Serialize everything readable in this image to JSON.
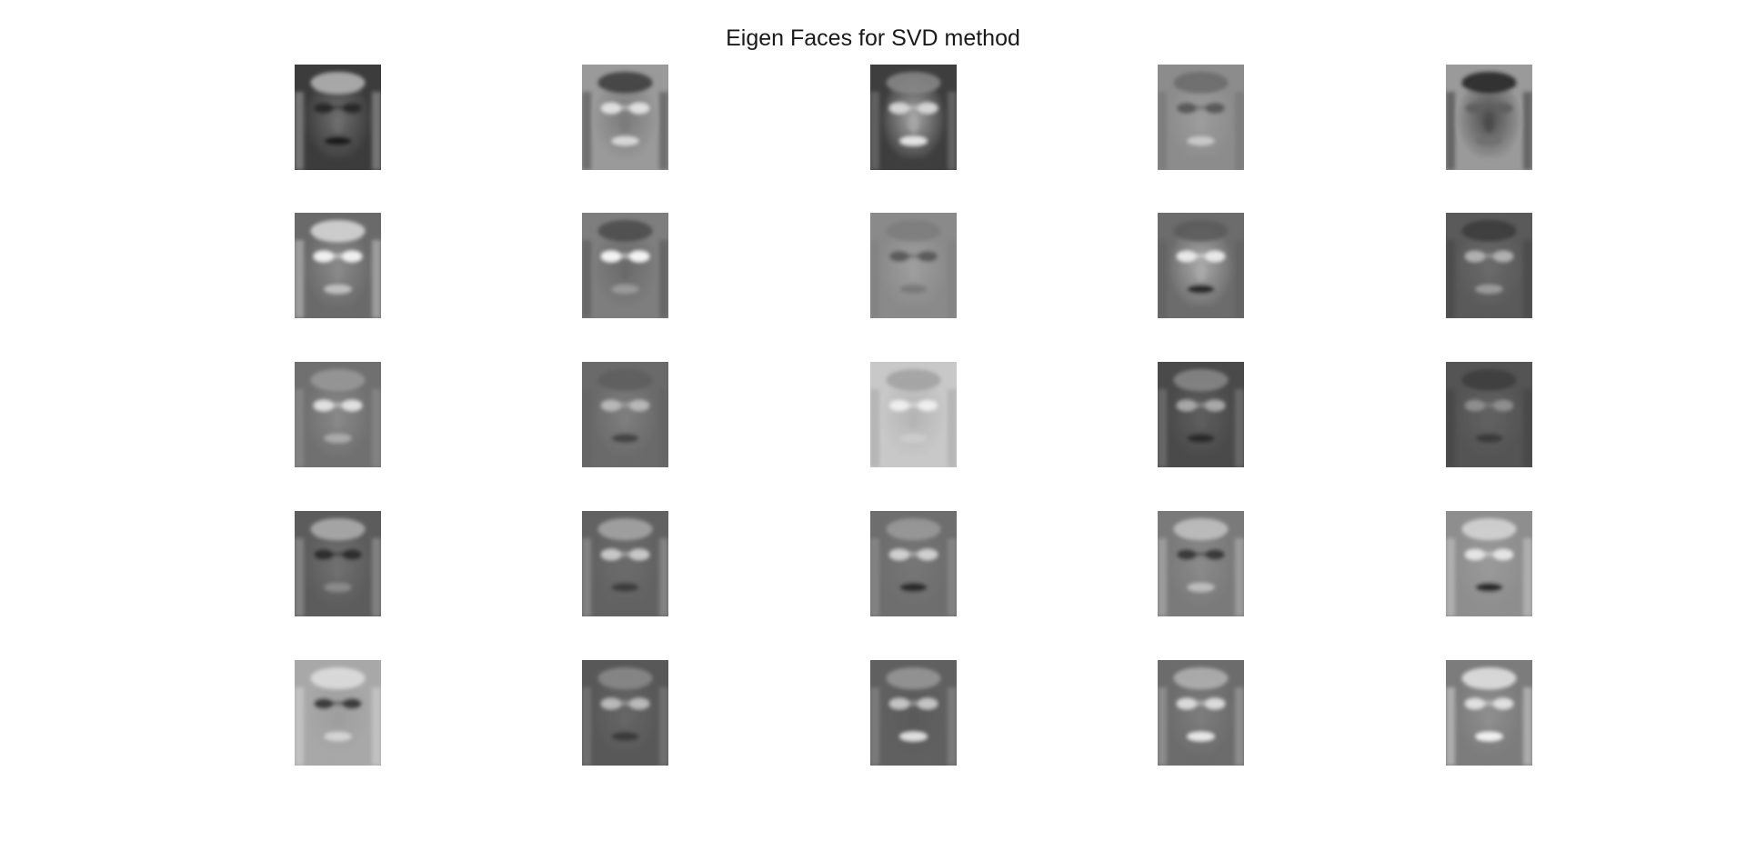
{
  "figure": {
    "title": "Eigen Faces for SVD method"
  },
  "grid": {
    "rows": 5,
    "cols": 5
  },
  "faces": [
    {
      "tone": "dark",
      "bg": "#3c3c3c",
      "skin": "#6e6e6e",
      "hair": "#b8b8b8",
      "eyes": "#2a2a2a",
      "mouth": "#1e1e1e"
    },
    {
      "tone": "mixed",
      "bg": "#9a9a9a",
      "skin": "#7a7a7a",
      "hair": "#3a3a3a",
      "eyes": "#e0e0e0",
      "mouth": "#d8d8d8"
    },
    {
      "tone": "light",
      "bg": "#3e3e3e",
      "skin": "#a8a8a8",
      "hair": "#8a8a8a",
      "eyes": "#d4d4d4",
      "mouth": "#e4e4e4"
    },
    {
      "tone": "mixed",
      "bg": "#8c8c8c",
      "skin": "#9c9c9c",
      "hair": "#6a6a6a",
      "eyes": "#5a5a5a",
      "mouth": "#c8c8c8"
    },
    {
      "tone": "dark",
      "bg": "#9a9a9a",
      "skin": "#4a4a4a",
      "hair": "#222222",
      "eyes": "#606060",
      "mouth": "#707070"
    },
    {
      "tone": "light",
      "bg": "#6a6a6a",
      "skin": "#8a8a8a",
      "hair": "#dcdcdc",
      "eyes": "#f0f0f0",
      "mouth": "#c0c0c0"
    },
    {
      "tone": "mixed",
      "bg": "#7e7e7e",
      "skin": "#6a6a6a",
      "hair": "#4a4a4a",
      "eyes": "#f4f4f4",
      "mouth": "#9a9a9a"
    },
    {
      "tone": "mixed",
      "bg": "#8a8a8a",
      "skin": "#9e9e9e",
      "hair": "#7c7c7c",
      "eyes": "#5c5c5c",
      "mouth": "#7a7a7a"
    },
    {
      "tone": "light",
      "bg": "#6c6c6c",
      "skin": "#aaaaaa",
      "hair": "#5a5a5a",
      "eyes": "#e8e8e8",
      "mouth": "#2a2a2a"
    },
    {
      "tone": "dark",
      "bg": "#5a5a5a",
      "skin": "#6a6a6a",
      "hair": "#3a3a3a",
      "eyes": "#b0b0b0",
      "mouth": "#9a9a9a"
    },
    {
      "tone": "mixed",
      "bg": "#707070",
      "skin": "#888888",
      "hair": "#9a9a9a",
      "eyes": "#e0e0e0",
      "mouth": "#aaaaaa"
    },
    {
      "tone": "mixed",
      "bg": "#6a6a6a",
      "skin": "#7e7e7e",
      "hair": "#5e5e5e",
      "eyes": "#b8b8b8",
      "mouth": "#444444"
    },
    {
      "tone": "light",
      "bg": "#c8c8c8",
      "skin": "#b4b4b4",
      "hair": "#a0a0a0",
      "eyes": "#eeeeee",
      "mouth": "#cccccc"
    },
    {
      "tone": "dark",
      "bg": "#4a4a4a",
      "skin": "#5e5e5e",
      "hair": "#8a8a8a",
      "eyes": "#a8a8a8",
      "mouth": "#2a2a2a"
    },
    {
      "tone": "dark",
      "bg": "#545454",
      "skin": "#626262",
      "hair": "#3c3c3c",
      "eyes": "#8e8e8e",
      "mouth": "#3a3a3a"
    },
    {
      "tone": "mixed",
      "bg": "#5c5c5c",
      "skin": "#707070",
      "hair": "#b0b0b0",
      "eyes": "#2e2e2e",
      "mouth": "#8a8a8a"
    },
    {
      "tone": "mixed",
      "bg": "#626262",
      "skin": "#6c6c6c",
      "hair": "#a8a8a8",
      "eyes": "#c8c8c8",
      "mouth": "#3c3c3c"
    },
    {
      "tone": "mixed",
      "bg": "#6e6e6e",
      "skin": "#767676",
      "hair": "#9c9c9c",
      "eyes": "#d0d0d0",
      "mouth": "#2c2c2c"
    },
    {
      "tone": "mixed",
      "bg": "#7a7a7a",
      "skin": "#8a8a8a",
      "hair": "#c4c4c4",
      "eyes": "#3a3a3a",
      "mouth": "#bcbcbc"
    },
    {
      "tone": "light",
      "bg": "#8e8e8e",
      "skin": "#9a9a9a",
      "hair": "#d8d8d8",
      "eyes": "#e4e4e4",
      "mouth": "#2a2a2a"
    },
    {
      "tone": "light",
      "bg": "#a8a8a8",
      "skin": "#9e9e9e",
      "hair": "#e0e0e0",
      "eyes": "#3c3c3c",
      "mouth": "#d4d4d4"
    },
    {
      "tone": "dark",
      "bg": "#585858",
      "skin": "#666666",
      "hair": "#8c8c8c",
      "eyes": "#bababa",
      "mouth": "#3a3a3a"
    },
    {
      "tone": "dark",
      "bg": "#606060",
      "skin": "#5a5a5a",
      "hair": "#9a9a9a",
      "eyes": "#c4c4c4",
      "mouth": "#e0e0e0"
    },
    {
      "tone": "mixed",
      "bg": "#6c6c6c",
      "skin": "#7c7c7c",
      "hair": "#b4b4b4",
      "eyes": "#dadada",
      "mouth": "#e8e8e8"
    },
    {
      "tone": "light",
      "bg": "#7c7c7c",
      "skin": "#8e8e8e",
      "hair": "#e6e6e6",
      "eyes": "#e0e0e0",
      "mouth": "#f2f2f2"
    }
  ]
}
